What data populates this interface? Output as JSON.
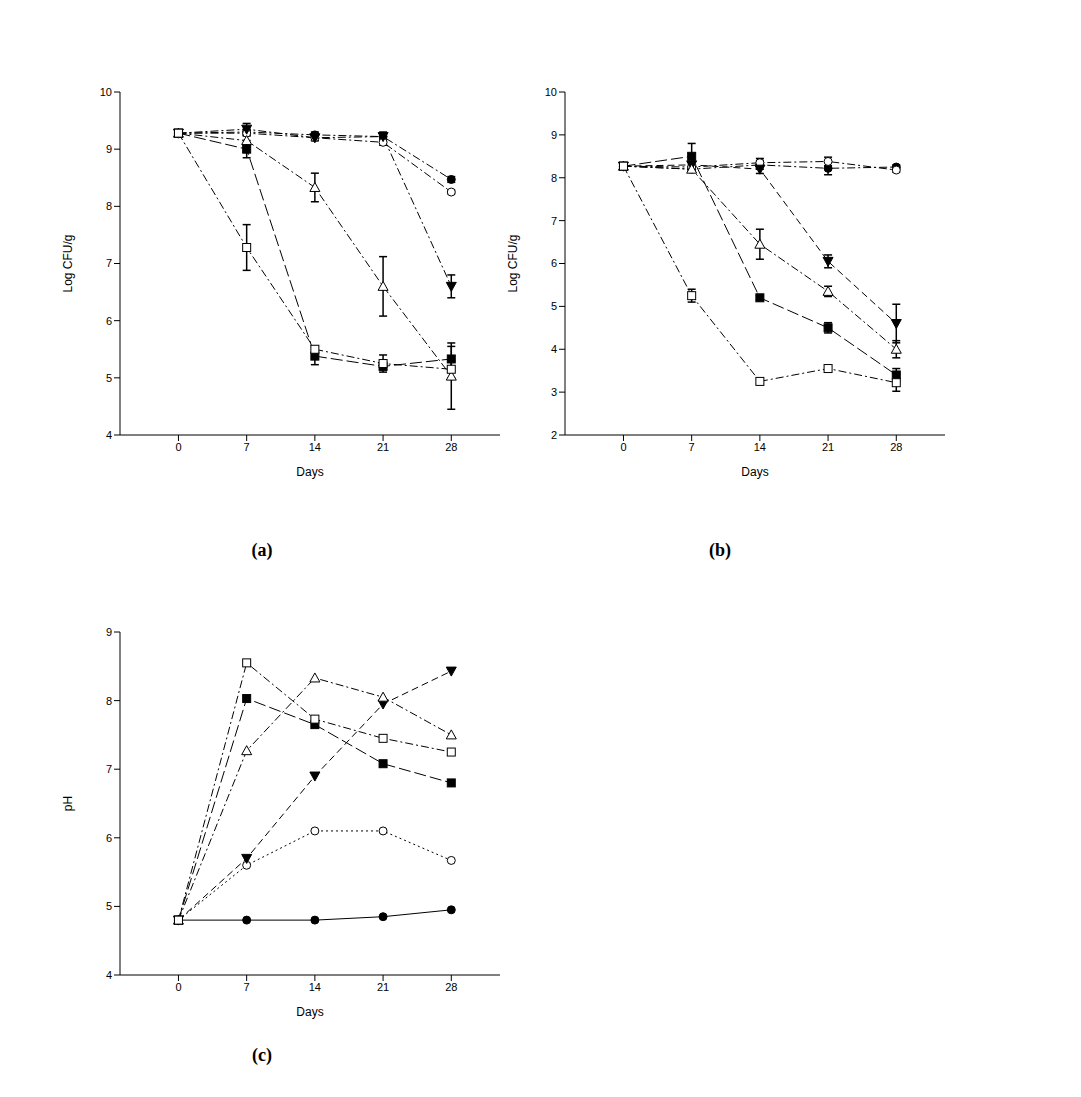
{
  "chart_data": [
    {
      "type": "line",
      "caption": "(a)",
      "x_label": "Days",
      "y_label": "Log CFU/g",
      "grid": false,
      "color": "#000000",
      "x": [
        0,
        7,
        14,
        21,
        28
      ],
      "xlim": [
        -6,
        33
      ],
      "xticks": [
        0,
        7,
        14,
        21,
        28
      ],
      "ylim": [
        4,
        10
      ],
      "yticks": [
        4,
        5,
        6,
        7,
        8,
        9,
        10
      ],
      "series": [
        {
          "marker": "circle",
          "line_style": "dashdot",
          "values": [
            9.28,
            9.3,
            9.25,
            9.22,
            8.47
          ],
          "errors": [
            0,
            0.05,
            0.05,
            0.05,
            0.05
          ]
        },
        {
          "marker": "open_circle",
          "line_style": "dashdot",
          "values": [
            9.28,
            9.28,
            9.2,
            9.12,
            8.25
          ],
          "errors": [
            0,
            0.05,
            0.05,
            0.05,
            0.03
          ]
        },
        {
          "marker": "down_triangle",
          "line_style": "dashdot",
          "values": [
            9.28,
            9.35,
            9.2,
            9.22,
            6.6
          ],
          "errors": [
            0,
            0.1,
            0.05,
            0.08,
            0.2
          ]
        },
        {
          "marker": "open_triangle",
          "line_style": "dashdot",
          "values": [
            9.28,
            9.15,
            8.33,
            6.6,
            5.03
          ],
          "errors": [
            0,
            0.1,
            0.25,
            0.52,
            0.58
          ]
        },
        {
          "marker": "square",
          "line_style": "longdash",
          "values": [
            9.28,
            9.0,
            5.38,
            5.2,
            5.33
          ],
          "errors": [
            0,
            0.15,
            0.15,
            0.05,
            0.22
          ]
        },
        {
          "marker": "open_square",
          "line_style": "dashdot",
          "values": [
            9.28,
            7.28,
            5.5,
            5.25,
            5.15
          ],
          "errors": [
            0,
            0.4,
            0.05,
            0.15,
            0.15
          ]
        }
      ]
    },
    {
      "type": "line",
      "caption": "(b)",
      "x_label": "Days",
      "y_label": "Log CFU/g",
      "grid": false,
      "color": "#000000",
      "x": [
        0,
        7,
        14,
        21,
        28
      ],
      "xlim": [
        -6,
        33
      ],
      "xticks": [
        0,
        7,
        14,
        21,
        28
      ],
      "ylim": [
        2,
        10
      ],
      "yticks": [
        2,
        3,
        4,
        5,
        6,
        7,
        8,
        9,
        10
      ],
      "series": [
        {
          "marker": "circle",
          "line_style": "dashdot",
          "values": [
            8.27,
            8.2,
            8.3,
            8.22,
            8.25
          ],
          "errors": [
            0,
            0.05,
            0.1,
            0.15,
            0.05
          ]
        },
        {
          "marker": "open_circle",
          "line_style": "dashdot",
          "values": [
            8.27,
            8.25,
            8.35,
            8.38,
            8.18
          ],
          "errors": [
            0,
            0.05,
            0.1,
            0.1,
            0.05
          ]
        },
        {
          "marker": "down_triangle",
          "line_style": "dashed",
          "values": [
            8.27,
            8.3,
            8.2,
            6.05,
            4.6
          ],
          "errors": [
            0,
            0.05,
            0.1,
            0.15,
            0.45
          ]
        },
        {
          "marker": "open_triangle",
          "line_style": "dashdot",
          "values": [
            8.27,
            8.2,
            6.45,
            5.35,
            4.0
          ],
          "errors": [
            0,
            0.05,
            0.35,
            0.12,
            0.2
          ]
        },
        {
          "marker": "square",
          "line_style": "longdash",
          "values": [
            8.27,
            8.5,
            5.2,
            4.5,
            3.4
          ],
          "errors": [
            0,
            0.3,
            0.05,
            0.12,
            0.15
          ]
        },
        {
          "marker": "open_square",
          "line_style": "dashdot",
          "values": [
            8.27,
            5.25,
            3.25,
            3.55,
            3.22
          ],
          "errors": [
            0,
            0.15,
            0.05,
            0.05,
            0.2
          ]
        }
      ]
    },
    {
      "type": "line",
      "caption": "(c)",
      "x_label": "Days",
      "y_label": "pH",
      "grid": false,
      "color": "#000000",
      "x": [
        0,
        7,
        14,
        21,
        28
      ],
      "xlim": [
        -6,
        33
      ],
      "xticks": [
        0,
        7,
        14,
        21,
        28
      ],
      "ylim": [
        4,
        9
      ],
      "yticks": [
        4,
        5,
        6,
        7,
        8,
        9
      ],
      "series": [
        {
          "marker": "circle",
          "line_style": "solid",
          "values": [
            4.8,
            4.8,
            4.8,
            4.85,
            4.95
          ]
        },
        {
          "marker": "open_circle",
          "line_style": "dotted",
          "values": [
            4.8,
            5.6,
            6.1,
            6.1,
            5.67
          ]
        },
        {
          "marker": "down_triangle",
          "line_style": "dashed",
          "values": [
            4.8,
            5.7,
            6.9,
            7.95,
            8.43
          ]
        },
        {
          "marker": "open_triangle",
          "line_style": "dashdot",
          "values": [
            4.8,
            7.27,
            8.33,
            8.05,
            7.5
          ]
        },
        {
          "marker": "square",
          "line_style": "longdash",
          "values": [
            4.8,
            8.03,
            7.65,
            7.08,
            6.8
          ]
        },
        {
          "marker": "open_square",
          "line_style": "dashdot",
          "values": [
            4.8,
            8.55,
            7.73,
            7.45,
            7.25
          ]
        }
      ]
    }
  ]
}
